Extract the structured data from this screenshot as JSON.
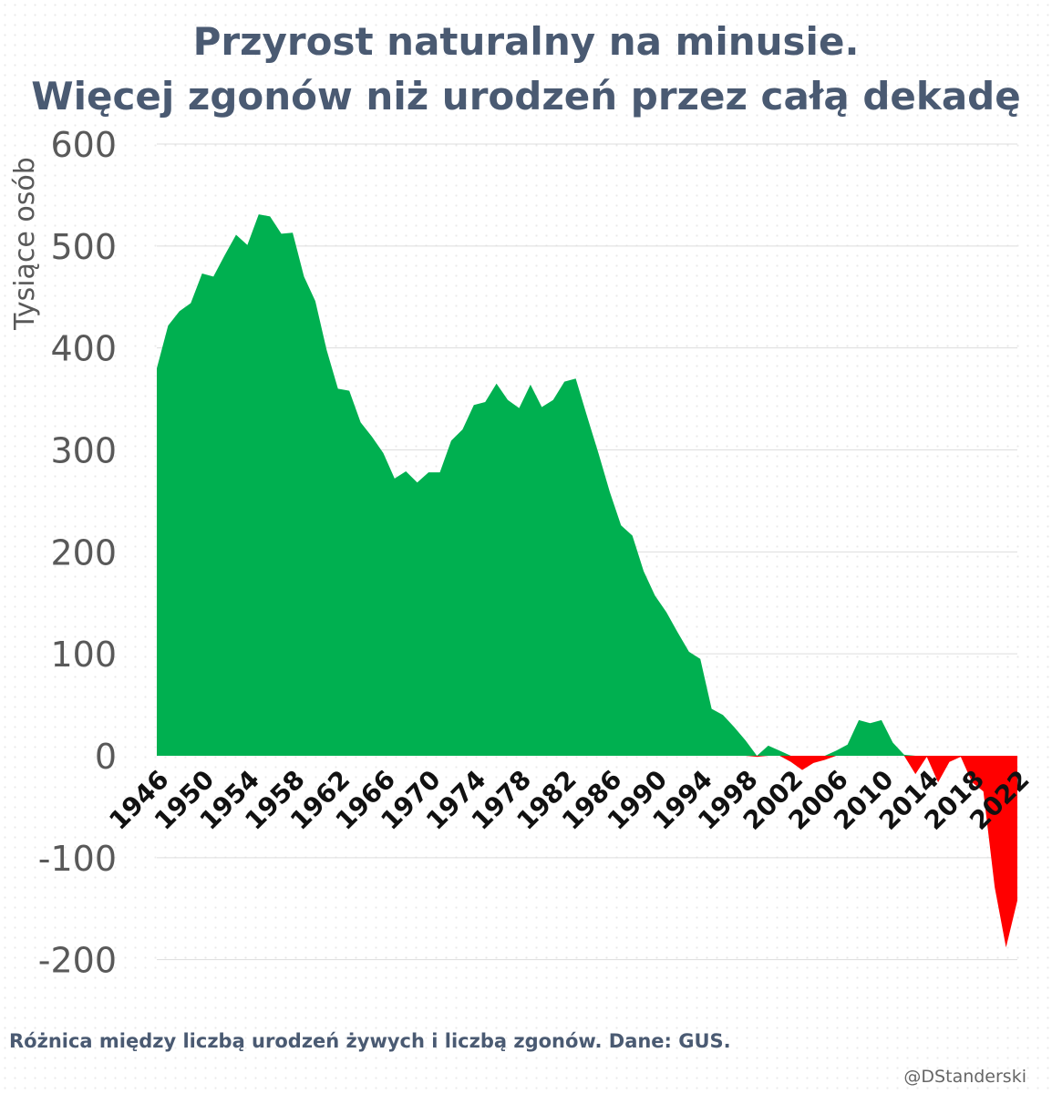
{
  "title_line1": "Przyrost naturalny na minusie.",
  "title_line2": "Więcej zgonów niż urodzeń przez całą dekadę",
  "caption": "Różnica między liczbą urodzeń żywych i liczbą zgonów. Dane: GUS.",
  "credit": "@DStanderski",
  "colors": {
    "positive": "#00b050",
    "negative": "#ff0000",
    "text": "#4a5a72",
    "grid": "#dddddd",
    "axis_text": "#595959"
  },
  "chart_data": {
    "type": "area",
    "ylabel": "Tysiące osób",
    "xlabel": "",
    "ylim": [
      -200,
      600
    ],
    "yticks": [
      600,
      500,
      400,
      300,
      200,
      100,
      0,
      -100,
      -200
    ],
    "xticks": [
      1946,
      1950,
      1954,
      1958,
      1962,
      1966,
      1970,
      1974,
      1978,
      1982,
      1986,
      1990,
      1994,
      1998,
      2002,
      2006,
      2010,
      2014,
      2018,
      2022
    ],
    "grid": "horizontal",
    "x": [
      1946,
      1947,
      1948,
      1949,
      1950,
      1951,
      1952,
      1953,
      1954,
      1955,
      1956,
      1957,
      1958,
      1959,
      1960,
      1961,
      1962,
      1963,
      1964,
      1965,
      1966,
      1967,
      1968,
      1969,
      1970,
      1971,
      1972,
      1973,
      1974,
      1975,
      1976,
      1977,
      1978,
      1979,
      1980,
      1981,
      1982,
      1983,
      1984,
      1985,
      1986,
      1987,
      1988,
      1989,
      1990,
      1991,
      1992,
      1993,
      1994,
      1995,
      1996,
      1997,
      1998,
      1999,
      2000,
      2001,
      2002,
      2003,
      2004,
      2005,
      2006,
      2007,
      2008,
      2009,
      2010,
      2011,
      2012,
      2013,
      2014,
      2015,
      2016,
      2017,
      2018,
      2019,
      2020,
      2021,
      2022
    ],
    "values": [
      380,
      422,
      436,
      444,
      473,
      470,
      491,
      511,
      501,
      531,
      529,
      512,
      513,
      470,
      446,
      398,
      360,
      358,
      327,
      313,
      297,
      272,
      279,
      268,
      278,
      278,
      309,
      320,
      344,
      347,
      365,
      349,
      341,
      364,
      342,
      349,
      367,
      370,
      333,
      297,
      259,
      226,
      216,
      181,
      157,
      141,
      121,
      102,
      95,
      46,
      40,
      28,
      15,
      -1,
      10,
      5,
      -6,
      -14,
      -7,
      -4,
      5,
      11,
      35,
      32,
      35,
      13,
      1,
      -18,
      -1,
      -26,
      -6,
      -1,
      -26,
      -35,
      -129,
      -188,
      -142
    ],
    "positive_color": "#00b050",
    "negative_color": "#ff0000"
  }
}
